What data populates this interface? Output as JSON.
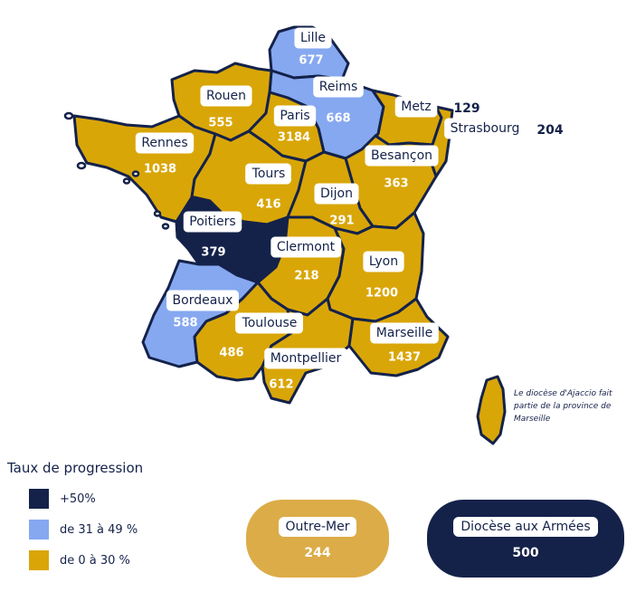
{
  "colors": {
    "dark": "#14224a",
    "light": "#86a8f0",
    "gold": "#d9a608"
  },
  "regions": [
    {
      "key": "lille",
      "name": "Lille",
      "value": "677",
      "category": "light"
    },
    {
      "key": "reims",
      "name": "Reims",
      "value": "668",
      "category": "light"
    },
    {
      "key": "rouen",
      "name": "Rouen",
      "value": "555",
      "category": "gold"
    },
    {
      "key": "paris",
      "name": "Paris",
      "value": "3184",
      "category": "gold"
    },
    {
      "key": "metz",
      "name": "Metz",
      "value": "129",
      "category": "gold"
    },
    {
      "key": "strasbourg",
      "name": "Strasbourg",
      "value": "204",
      "category": "gold"
    },
    {
      "key": "rennes",
      "name": "Rennes",
      "value": "1038",
      "category": "gold"
    },
    {
      "key": "besancon",
      "name": "Besançon",
      "value": "363",
      "category": "gold"
    },
    {
      "key": "tours",
      "name": "Tours",
      "value": "416",
      "category": "gold"
    },
    {
      "key": "dijon",
      "name": "Dijon",
      "value": "291",
      "category": "gold"
    },
    {
      "key": "poitiers",
      "name": "Poitiers",
      "value": "379",
      "category": "dark"
    },
    {
      "key": "clermont",
      "name": "Clermont",
      "value": "218",
      "category": "gold"
    },
    {
      "key": "lyon",
      "name": "Lyon",
      "value": "1200",
      "category": "gold"
    },
    {
      "key": "bordeaux",
      "name": "Bordeaux",
      "value": "588",
      "category": "light"
    },
    {
      "key": "toulouse",
      "name": "Toulouse",
      "value": "486",
      "category": "gold"
    },
    {
      "key": "marseille",
      "name": "Marseille",
      "value": "1437",
      "category": "gold"
    },
    {
      "key": "montpellier",
      "name": "Montpellier",
      "value": "612",
      "category": "gold"
    }
  ],
  "corsica_note": "Le diocèse d'Ajaccio fait partie de la province de Marseille",
  "legend": {
    "title": "Taux de progression",
    "items": [
      {
        "label": "+50%",
        "category": "dark"
      },
      {
        "label": "de 31 à 49 %",
        "category": "light"
      },
      {
        "label": "de 0 à 30 %",
        "category": "gold"
      }
    ]
  },
  "outre_mer": {
    "label": "Outre-Mer",
    "value": "244"
  },
  "armees": {
    "label": "Diocèse aux Armées",
    "value": "500"
  }
}
